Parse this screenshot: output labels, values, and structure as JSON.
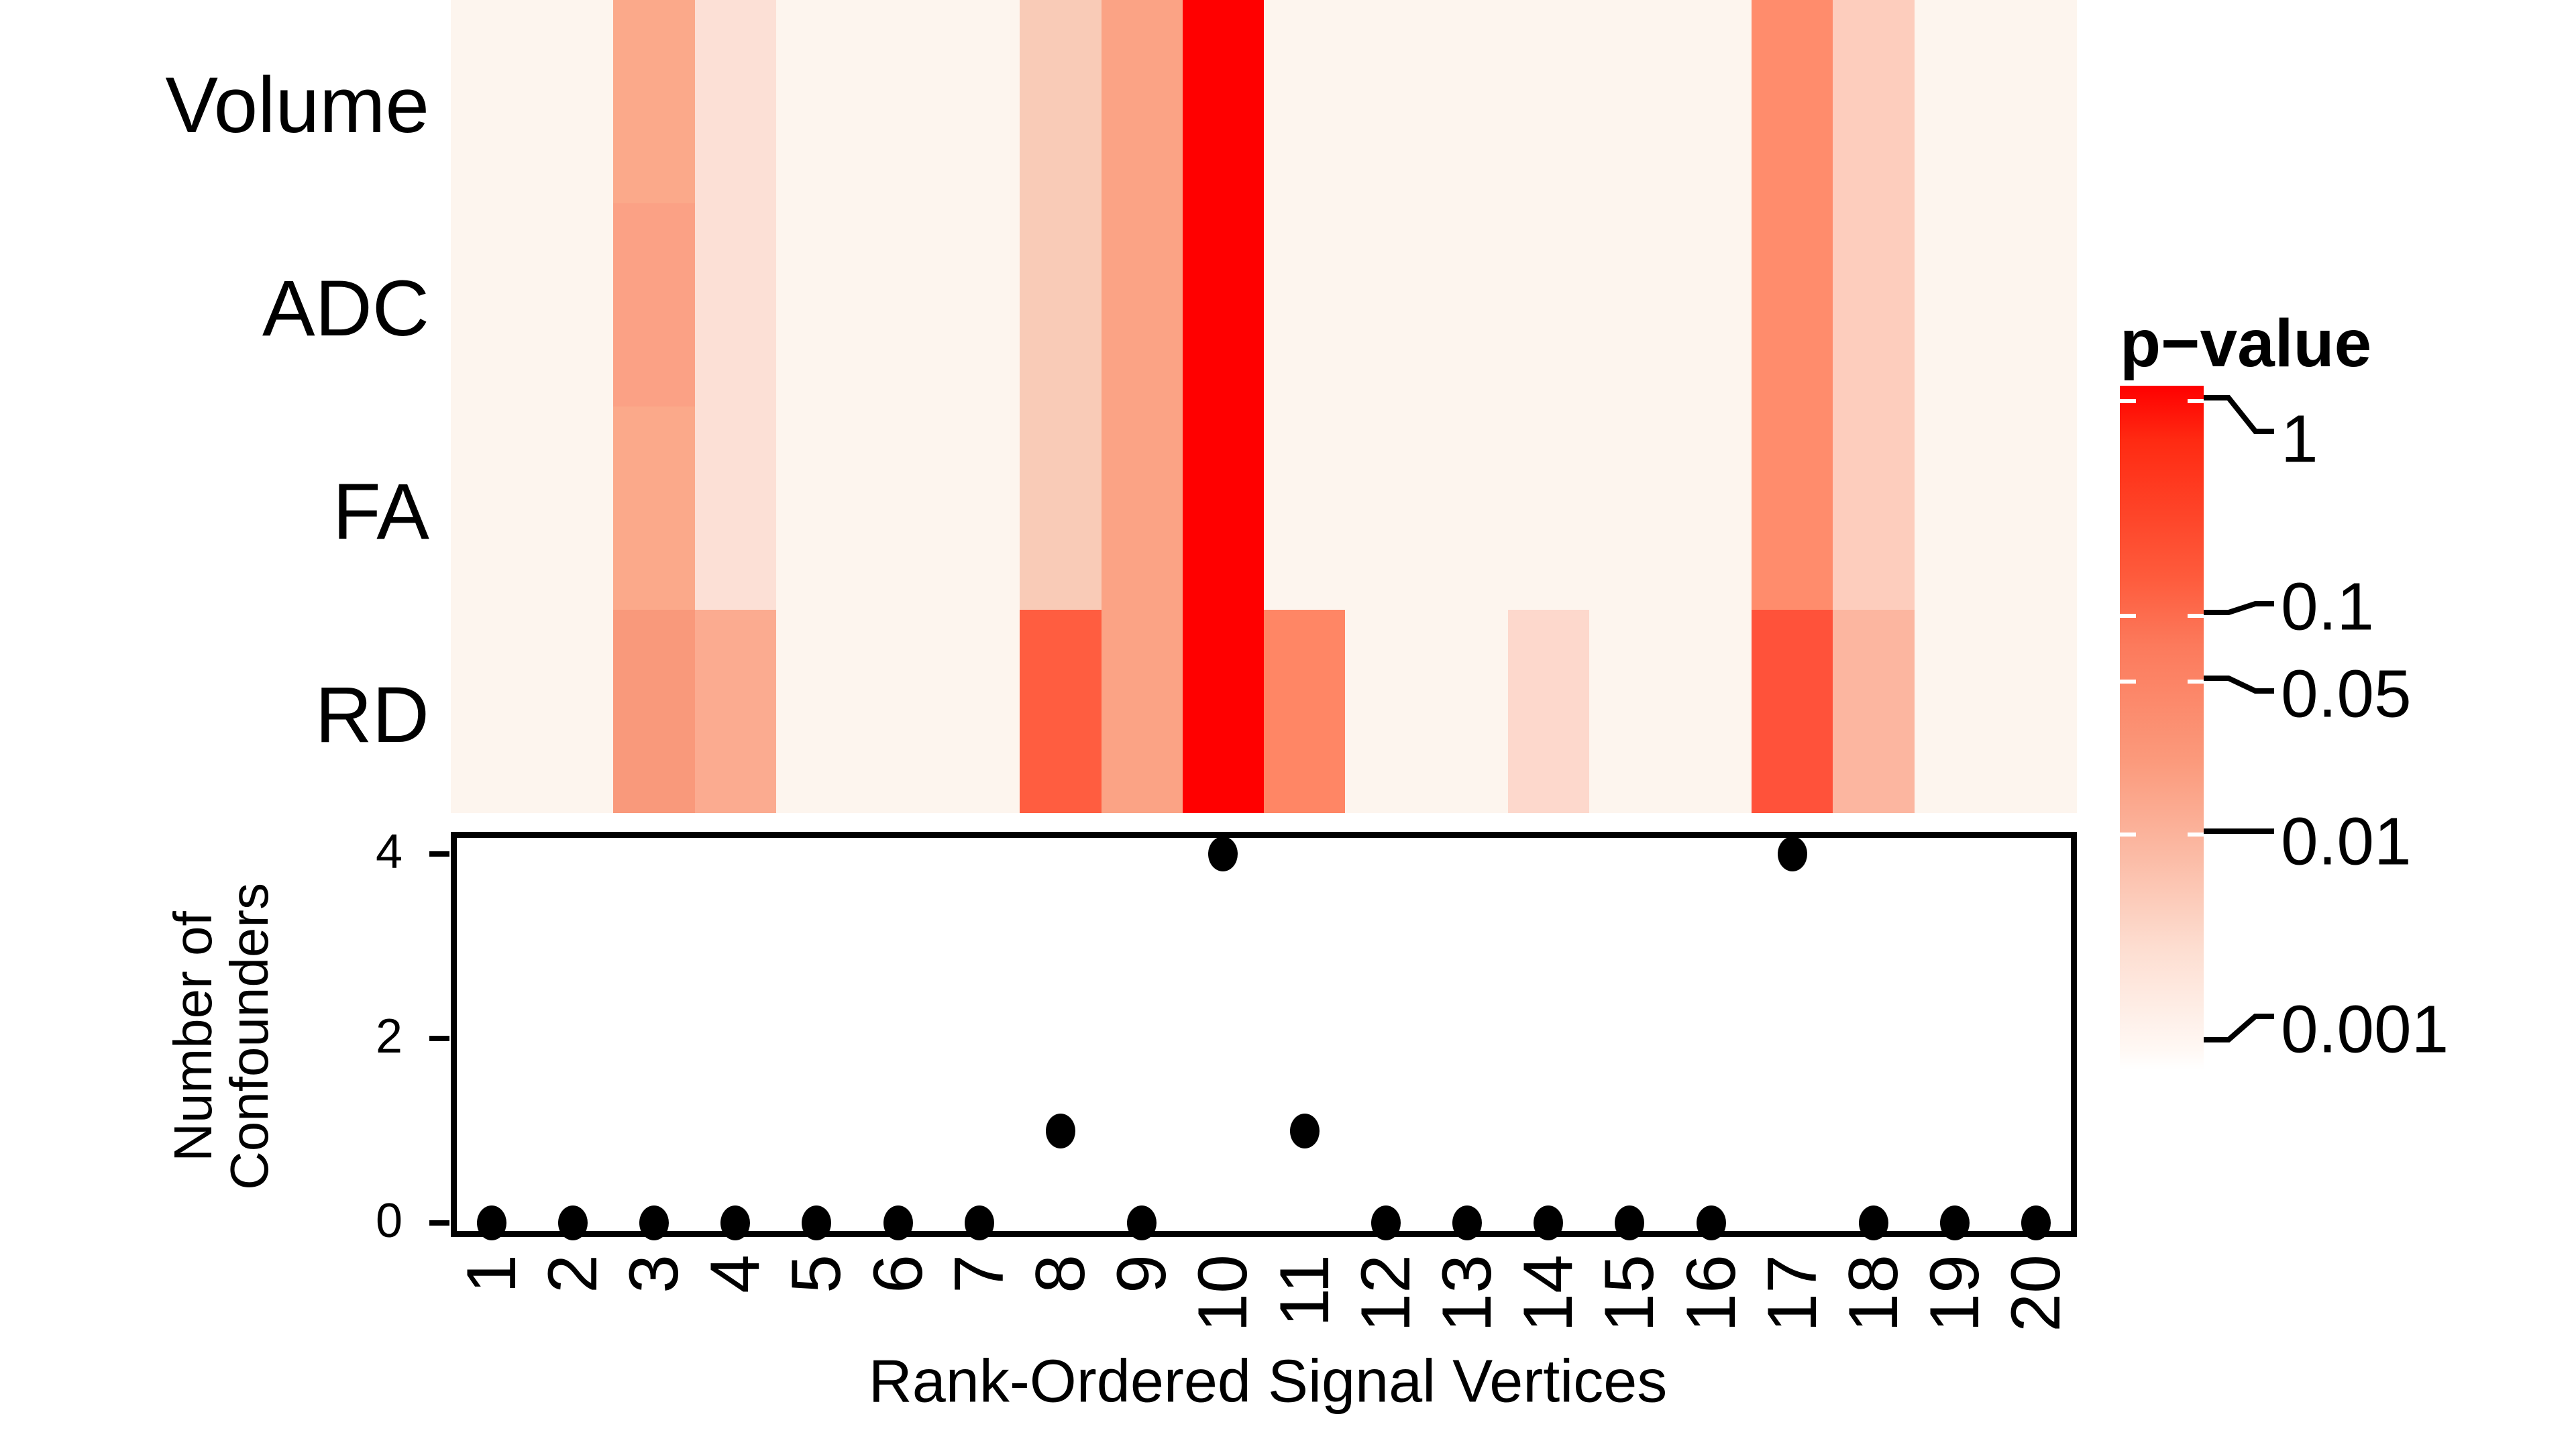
{
  "chart_data": [
    {
      "type": "heatmap",
      "title": "",
      "rows": [
        "Volume",
        "ADC",
        "FA",
        "RD"
      ],
      "columns": [
        "1",
        "2",
        "3",
        "4",
        "5",
        "6",
        "7",
        "8",
        "9",
        "10",
        "11",
        "12",
        "13",
        "14",
        "15",
        "16",
        "17",
        "18",
        "19",
        "20"
      ],
      "colors": {
        "Volume": [
          "#FDF5EE",
          "#FDF5EE",
          "#FBA98A",
          "#FCE0D6",
          "#FDF5EE",
          "#FDF5EE",
          "#FDF5EE",
          "#F9CBB7",
          "#FBA385",
          "#FF0000",
          "#FDF5EE",
          "#FDF5EE",
          "#FDF5EE",
          "#FDF5EE",
          "#FDF5EE",
          "#FDF5EE",
          "#FF8C6C",
          "#FDCDBD",
          "#FDF5EE",
          "#FDF5EE"
        ],
        "ADC": [
          "#FDF5EE",
          "#FDF5EE",
          "#FBA185",
          "#FCE0D6",
          "#FDF5EE",
          "#FDF5EE",
          "#FDF5EE",
          "#F9CBB7",
          "#FBA385",
          "#FF0000",
          "#FDF5EE",
          "#FDF5EE",
          "#FDF5EE",
          "#FDF5EE",
          "#FDF5EE",
          "#FDF5EE",
          "#FF8C6C",
          "#FDCDBD",
          "#FDF5EE",
          "#FDF5EE"
        ],
        "FA": [
          "#FDF5EE",
          "#FDF5EE",
          "#FBA98A",
          "#FCE0D6",
          "#FDF5EE",
          "#FDF5EE",
          "#FDF5EE",
          "#F9CBB7",
          "#FBA385",
          "#FF0000",
          "#FDF5EE",
          "#FDF5EE",
          "#FDF5EE",
          "#FDF5EE",
          "#FDF5EE",
          "#FDF5EE",
          "#FF8C6C",
          "#FDCDBD",
          "#FDF5EE",
          "#FDF5EE"
        ],
        "RD": [
          "#FDF5EE",
          "#FDF5EE",
          "#F9997B",
          "#FBAB90",
          "#FDF5EE",
          "#FDF5EE",
          "#FDF5EE",
          "#FF5D40",
          "#FBA385",
          "#FF0000",
          "#FF8665",
          "#FDF5EE",
          "#FDF5EE",
          "#FDD8CC",
          "#FDF5EE",
          "#FDF5EE",
          "#FF523A",
          "#FCB6A0",
          "#FDF5EE",
          "#FDF5EE"
        ]
      },
      "approx_p_values": {
        "Volume": [
          0.001,
          0.001,
          0.05,
          0.005,
          0.001,
          0.001,
          0.001,
          0.02,
          0.05,
          1,
          0.001,
          0.001,
          0.001,
          0.001,
          0.001,
          0.001,
          0.08,
          0.015,
          0.001,
          0.001
        ],
        "ADC": [
          0.001,
          0.001,
          0.06,
          0.005,
          0.001,
          0.001,
          0.001,
          0.02,
          0.05,
          1,
          0.001,
          0.001,
          0.001,
          0.001,
          0.001,
          0.001,
          0.08,
          0.015,
          0.001,
          0.001
        ],
        "FA": [
          0.001,
          0.001,
          0.05,
          0.005,
          0.001,
          0.001,
          0.001,
          0.02,
          0.05,
          1,
          0.001,
          0.001,
          0.001,
          0.001,
          0.001,
          0.001,
          0.08,
          0.015,
          0.001,
          0.001
        ],
        "RD": [
          0.001,
          0.001,
          0.07,
          0.04,
          0.001,
          0.001,
          0.001,
          0.25,
          0.06,
          1,
          0.1,
          0.001,
          0.001,
          0.006,
          0.001,
          0.001,
          0.3,
          0.03,
          0.001,
          0.001
        ]
      },
      "legend": {
        "title": "p−value",
        "ticks": [
          "1",
          "0.1",
          "0.05",
          "0.01",
          "0.001"
        ],
        "low_color": "#FFFFFF",
        "high_color": "#FF0000"
      }
    },
    {
      "type": "scatter",
      "x": [
        1,
        2,
        3,
        4,
        5,
        6,
        7,
        8,
        9,
        10,
        11,
        12,
        13,
        14,
        15,
        16,
        17,
        18,
        19,
        20
      ],
      "y": [
        0,
        0,
        0,
        0,
        0,
        0,
        0,
        1,
        0,
        4,
        1,
        0,
        0,
        0,
        0,
        0,
        4,
        0,
        0,
        0
      ],
      "xlabel": "Rank-Ordered Signal Vertices",
      "ylabel": "Number of Confounders",
      "yticks": [
        "0",
        "2",
        "4"
      ],
      "ylim": [
        0,
        4
      ],
      "xtick_labels": [
        "1",
        "2",
        "3",
        "4",
        "5",
        "6",
        "7",
        "8",
        "9",
        "10",
        "11",
        "12",
        "13",
        "14",
        "15",
        "16",
        "17",
        "18",
        "19",
        "20"
      ]
    }
  ],
  "heatmap": {
    "row_labels": [
      "Volume",
      "ADC",
      "FA",
      "RD"
    ]
  },
  "panel": {
    "ylabel_line1": "Number of",
    "ylabel_line2": "Confounders",
    "yticks": [
      "4",
      "2",
      "0"
    ],
    "xlabel": "Rank-Ordered Signal Vertices"
  },
  "legend": {
    "title": "p−value",
    "labels": [
      "1",
      "0.1",
      "0.05",
      "0.01",
      "0.001"
    ]
  }
}
